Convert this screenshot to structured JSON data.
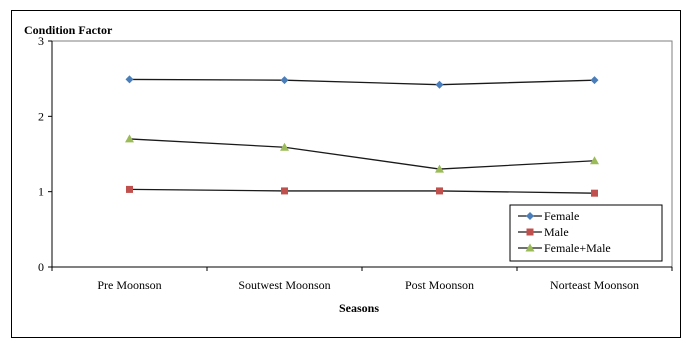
{
  "chart_data": {
    "type": "line",
    "ylabel": "Condition Factor",
    "xlabel": "Seasons",
    "categories": [
      "Pre Moonson",
      "Soutwest Moonson",
      "Post Moonson",
      "Norteast Moonson"
    ],
    "ylim": [
      0,
      3
    ],
    "yticks": [
      0,
      1,
      2,
      3
    ],
    "grid": false,
    "legend_position": "bottom-right",
    "series": [
      {
        "name": "Female",
        "values": [
          2.49,
          2.48,
          2.42,
          2.48
        ],
        "color": "#4a7ebb",
        "marker": "diamond"
      },
      {
        "name": "Male",
        "values": [
          1.03,
          1.01,
          1.01,
          0.98
        ],
        "color": "#c0504d",
        "marker": "square"
      },
      {
        "name": "Female+Male",
        "values": [
          1.7,
          1.59,
          1.3,
          1.41
        ],
        "color": "#9bbb59",
        "marker": "triangle"
      }
    ]
  }
}
